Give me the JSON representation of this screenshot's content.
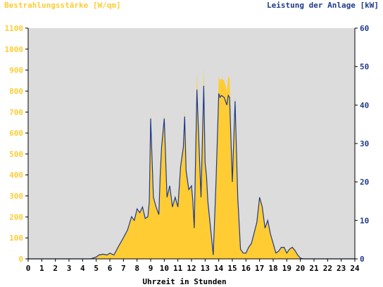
{
  "chart_data": {
    "type": "area",
    "title": "",
    "xlabel": "Uhrzeit in Stunden",
    "ylabel_left": "Bestrahlungsstärke [W/qm]",
    "ylabel_right": "Leistung der Anlage [kW]",
    "x_range": [
      0,
      24
    ],
    "ylim_left": [
      0,
      1100
    ],
    "ylim_right": [
      0,
      60
    ],
    "x_ticks": [
      "0",
      "1",
      "2",
      "3",
      "4",
      "5",
      "6",
      "7",
      "8",
      "9",
      "10",
      "11",
      "12",
      "13",
      "14",
      "15",
      "16",
      "17",
      "18",
      "19",
      "20",
      "21",
      "22",
      "23",
      "24"
    ],
    "y_ticks_left": [
      "0",
      "100",
      "200",
      "300",
      "400",
      "500",
      "600",
      "700",
      "800",
      "900",
      "1000",
      "1100"
    ],
    "y_ticks_right": [
      "0",
      "10",
      "20",
      "30",
      "40",
      "50",
      "60"
    ],
    "grid": false,
    "background": "#dcdcdc",
    "colors": {
      "irradiance_fill": "#ffcc33",
      "power_line": "#1f3a8a",
      "left_axis_text": "#ffcc33",
      "right_axis_text": "#1f3a8a",
      "axis_line": "#000000"
    },
    "series": [
      {
        "name": "Bestrahlungsstärke [W/qm]",
        "axis": "left",
        "style": "area",
        "x": [
          0,
          4.6,
          5.0,
          5.2,
          5.5,
          5.8,
          6.0,
          6.3,
          6.6,
          7.0,
          7.3,
          7.6,
          7.8,
          8.0,
          8.2,
          8.4,
          8.6,
          8.8,
          8.9,
          9.0,
          9.2,
          9.4,
          9.6,
          9.7,
          9.8,
          10.0,
          10.2,
          10.4,
          10.6,
          10.8,
          11.0,
          11.2,
          11.4,
          11.5,
          11.6,
          11.8,
          12.0,
          12.1,
          12.2,
          12.4,
          12.6,
          12.7,
          12.8,
          12.9,
          13.0,
          13.1,
          13.2,
          13.4,
          13.6,
          13.8,
          14.0,
          14.1,
          14.2,
          14.4,
          14.6,
          14.7,
          14.8,
          15.0,
          15.2,
          15.4,
          15.6,
          15.8,
          16.0,
          16.2,
          16.4,
          16.8,
          17.0,
          17.2,
          17.4,
          17.6,
          17.8,
          18.0,
          18.2,
          18.4,
          18.6,
          18.8,
          19.0,
          19.2,
          19.4,
          19.6,
          19.8,
          20.0,
          20.2,
          24
        ],
        "values": [
          0,
          0,
          10,
          20,
          25,
          20,
          30,
          20,
          60,
          100,
          140,
          200,
          180,
          240,
          220,
          250,
          190,
          200,
          280,
          690,
          300,
          250,
          210,
          400,
          550,
          690,
          300,
          350,
          250,
          300,
          250,
          450,
          550,
          710,
          430,
          330,
          350,
          280,
          150,
          890,
          460,
          300,
          580,
          920,
          460,
          400,
          280,
          150,
          20,
          380,
          870,
          850,
          860,
          850,
          800,
          870,
          860,
          380,
          780,
          300,
          50,
          30,
          30,
          60,
          80,
          180,
          300,
          260,
          150,
          190,
          120,
          80,
          30,
          40,
          55,
          60,
          30,
          50,
          60,
          45,
          20,
          5,
          0,
          0
        ]
      },
      {
        "name": "Leistung der Anlage [kW]",
        "axis": "right",
        "style": "line",
        "x": [
          0,
          4.6,
          5.0,
          5.2,
          5.5,
          5.8,
          6.0,
          6.3,
          6.6,
          7.0,
          7.3,
          7.6,
          7.8,
          8.0,
          8.2,
          8.4,
          8.6,
          8.8,
          8.9,
          9.0,
          9.2,
          9.4,
          9.6,
          9.7,
          9.8,
          10.0,
          10.2,
          10.4,
          10.6,
          10.8,
          11.0,
          11.2,
          11.4,
          11.5,
          11.6,
          11.8,
          12.0,
          12.1,
          12.2,
          12.4,
          12.6,
          12.7,
          12.8,
          12.9,
          13.0,
          13.1,
          13.2,
          13.4,
          13.6,
          13.8,
          14.0,
          14.1,
          14.2,
          14.4,
          14.6,
          14.7,
          14.8,
          15.0,
          15.2,
          15.4,
          15.6,
          15.8,
          16.0,
          16.2,
          16.4,
          16.8,
          17.0,
          17.2,
          17.4,
          17.6,
          17.8,
          18.0,
          18.2,
          18.4,
          18.6,
          18.8,
          19.0,
          19.2,
          19.4,
          19.6,
          19.8,
          20.0,
          20.2,
          24
        ],
        "values": [
          0,
          0,
          0.5,
          1,
          1.2,
          1,
          1.5,
          1,
          3,
          5.5,
          7.5,
          11,
          10,
          13,
          12,
          13.5,
          10.5,
          11,
          15,
          36.5,
          16,
          13.5,
          11.5,
          21.5,
          29,
          36.5,
          16,
          19,
          13.5,
          16,
          13.5,
          24,
          29,
          37,
          23,
          18,
          19,
          15,
          8,
          44,
          25,
          16,
          31,
          45,
          25,
          21.5,
          15,
          8,
          1,
          20,
          43,
          42,
          42.5,
          42,
          40,
          42.5,
          42,
          20,
          41,
          16,
          2.5,
          1.5,
          1.5,
          3,
          4,
          9.5,
          16,
          13.5,
          8,
          10,
          6.5,
          4,
          1.5,
          2,
          3,
          3,
          1.5,
          2.5,
          3,
          2.2,
          1,
          0.2,
          0,
          0
        ]
      }
    ]
  }
}
